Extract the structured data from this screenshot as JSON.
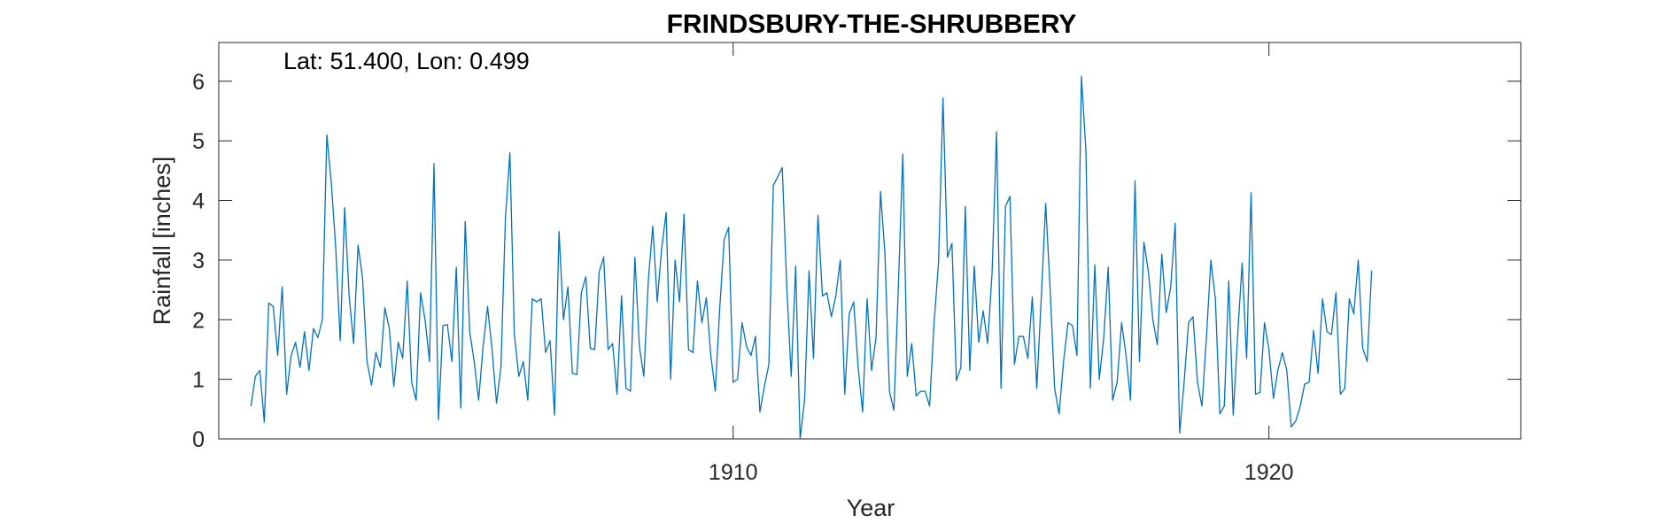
{
  "chart_data": {
    "type": "line",
    "title": "FRINDSBURY-THE-SHRUBBERY",
    "annotation": "Lat: 51.400, Lon: 0.499",
    "xlabel": "Year",
    "ylabel": "Rainfall [inches]",
    "xlim": [
      1900.7,
      1923.0
    ],
    "ylim": [
      0,
      6.65
    ],
    "xticks": [
      1910,
      1920
    ],
    "xtick_labels": [
      "1910",
      "1920"
    ],
    "yticks": [
      0,
      1,
      2,
      3,
      4,
      5,
      6
    ],
    "ytick_labels": [
      "0",
      "1",
      "2",
      "3",
      "4",
      "5",
      "6"
    ],
    "grid": false,
    "legend": "none",
    "line_color": "#0072BD",
    "x_start": 1901.0,
    "x_step_months": 1,
    "series": [
      {
        "values": [
          0.55,
          1.05,
          1.15,
          0.28,
          2.28,
          2.22,
          1.4,
          2.55,
          0.75,
          1.4,
          1.62,
          1.2,
          1.8,
          1.15,
          1.85,
          1.7,
          2.0,
          5.1,
          4.3,
          3.2,
          1.65,
          3.88,
          2.4,
          1.6,
          3.25,
          2.7,
          1.3,
          0.9,
          1.45,
          1.2,
          2.2,
          1.85,
          0.88,
          1.62,
          1.35,
          2.65,
          0.95,
          0.65,
          2.45,
          2.0,
          1.3,
          4.62,
          0.32,
          1.9,
          1.92,
          1.3,
          2.88,
          0.52,
          3.65,
          1.8,
          1.3,
          0.65,
          1.55,
          2.22,
          1.5,
          0.6,
          1.2,
          3.7,
          4.8,
          1.75,
          1.05,
          1.3,
          0.65,
          2.35,
          2.3,
          2.35,
          1.45,
          1.65,
          0.4,
          3.48,
          2.0,
          2.55,
          1.1,
          1.08,
          2.45,
          2.72,
          1.52,
          1.5,
          2.8,
          3.05,
          1.5,
          1.6,
          0.75,
          2.4,
          0.85,
          0.8,
          3.05,
          1.55,
          1.05,
          2.65,
          3.57,
          2.3,
          3.2,
          3.8,
          1.0,
          3.0,
          2.3,
          3.77,
          1.5,
          1.45,
          2.65,
          1.95,
          2.37,
          1.4,
          0.8,
          2.2,
          3.35,
          3.55,
          0.95,
          1.0,
          1.95,
          1.55,
          1.4,
          1.72,
          0.45,
          0.88,
          1.25,
          4.25,
          4.4,
          4.55,
          2.58,
          1.05,
          2.9,
          0.0,
          0.65,
          2.82,
          1.35,
          3.75,
          2.4,
          2.45,
          2.05,
          2.4,
          3.0,
          0.75,
          2.1,
          2.3,
          1.2,
          0.45,
          2.35,
          1.15,
          1.7,
          4.15,
          3.1,
          0.8,
          0.48,
          2.55,
          4.78,
          1.05,
          1.6,
          0.72,
          0.8,
          0.8,
          0.55,
          1.95,
          2.95,
          5.72,
          3.05,
          3.28,
          0.98,
          1.2,
          3.9,
          1.15,
          2.9,
          1.62,
          2.15,
          1.6,
          2.8,
          5.15,
          0.85,
          3.9,
          4.07,
          1.25,
          1.72,
          1.72,
          1.35,
          2.38,
          0.85,
          2.35,
          3.95,
          2.5,
          0.85,
          0.42,
          1.3,
          1.95,
          1.9,
          1.4,
          6.08,
          4.85,
          0.85,
          2.92,
          1.0,
          1.7,
          2.88,
          0.65,
          0.95,
          1.95,
          1.4,
          0.65,
          4.33,
          1.3,
          3.3,
          2.8,
          2.0,
          1.58,
          3.1,
          2.12,
          2.55,
          3.62,
          0.1,
          0.95,
          1.95,
          2.05,
          0.95,
          0.55,
          1.7,
          3.0,
          2.35,
          0.42,
          0.55,
          2.65,
          0.4,
          1.75,
          2.95,
          1.35,
          4.13,
          0.75,
          0.78,
          1.95,
          1.5,
          0.68,
          1.15,
          1.45,
          1.15,
          0.2,
          0.3,
          0.55,
          0.92,
          0.95,
          1.82,
          1.1,
          2.35,
          1.8,
          1.75,
          2.45,
          0.75,
          0.85,
          2.35,
          2.1,
          3.0,
          1.52,
          1.3,
          2.82
        ]
      }
    ]
  }
}
